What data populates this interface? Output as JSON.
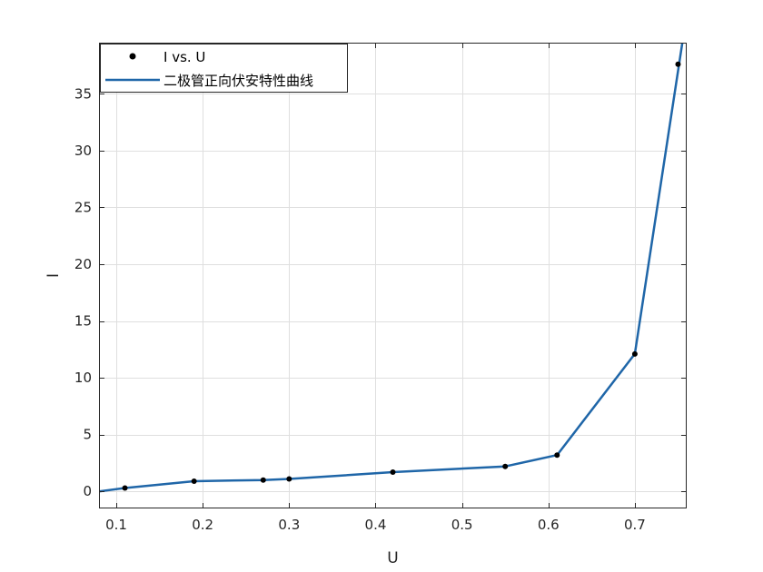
{
  "chart_data": {
    "type": "line",
    "xlabel": "U",
    "ylabel": "I",
    "xlim": [
      0.08,
      0.76
    ],
    "ylim": [
      -1.5,
      39.5
    ],
    "xticks": [
      0.1,
      0.2,
      0.3,
      0.4,
      0.5,
      0.6,
      0.7
    ],
    "xtick_labels": [
      "0.1",
      "0.2",
      "0.3",
      "0.4",
      "0.5",
      "0.6",
      "0.7"
    ],
    "yticks": [
      0,
      5,
      10,
      15,
      20,
      25,
      30,
      35
    ],
    "ytick_labels": [
      "0",
      "5",
      "10",
      "15",
      "20",
      "25",
      "30",
      "35"
    ],
    "grid": true,
    "legend_position": "top-left",
    "series": [
      {
        "name": "I vs. U",
        "style": "markers",
        "color": "#000000",
        "x": [
          0.11,
          0.19,
          0.27,
          0.3,
          0.42,
          0.55,
          0.61,
          0.7,
          0.75
        ],
        "y": [
          0.3,
          0.9,
          1.0,
          1.1,
          1.7,
          2.2,
          3.2,
          12.1,
          37.6
        ]
      },
      {
        "name": "二极管正向伏安特性曲线",
        "style": "line",
        "color": "#1f66a8",
        "x": [
          0.08,
          0.11,
          0.19,
          0.27,
          0.3,
          0.42,
          0.55,
          0.61,
          0.7,
          0.76
        ],
        "y": [
          0.0,
          0.3,
          0.9,
          1.0,
          1.1,
          1.7,
          2.2,
          3.2,
          12.1,
          42.0
        ]
      }
    ]
  }
}
